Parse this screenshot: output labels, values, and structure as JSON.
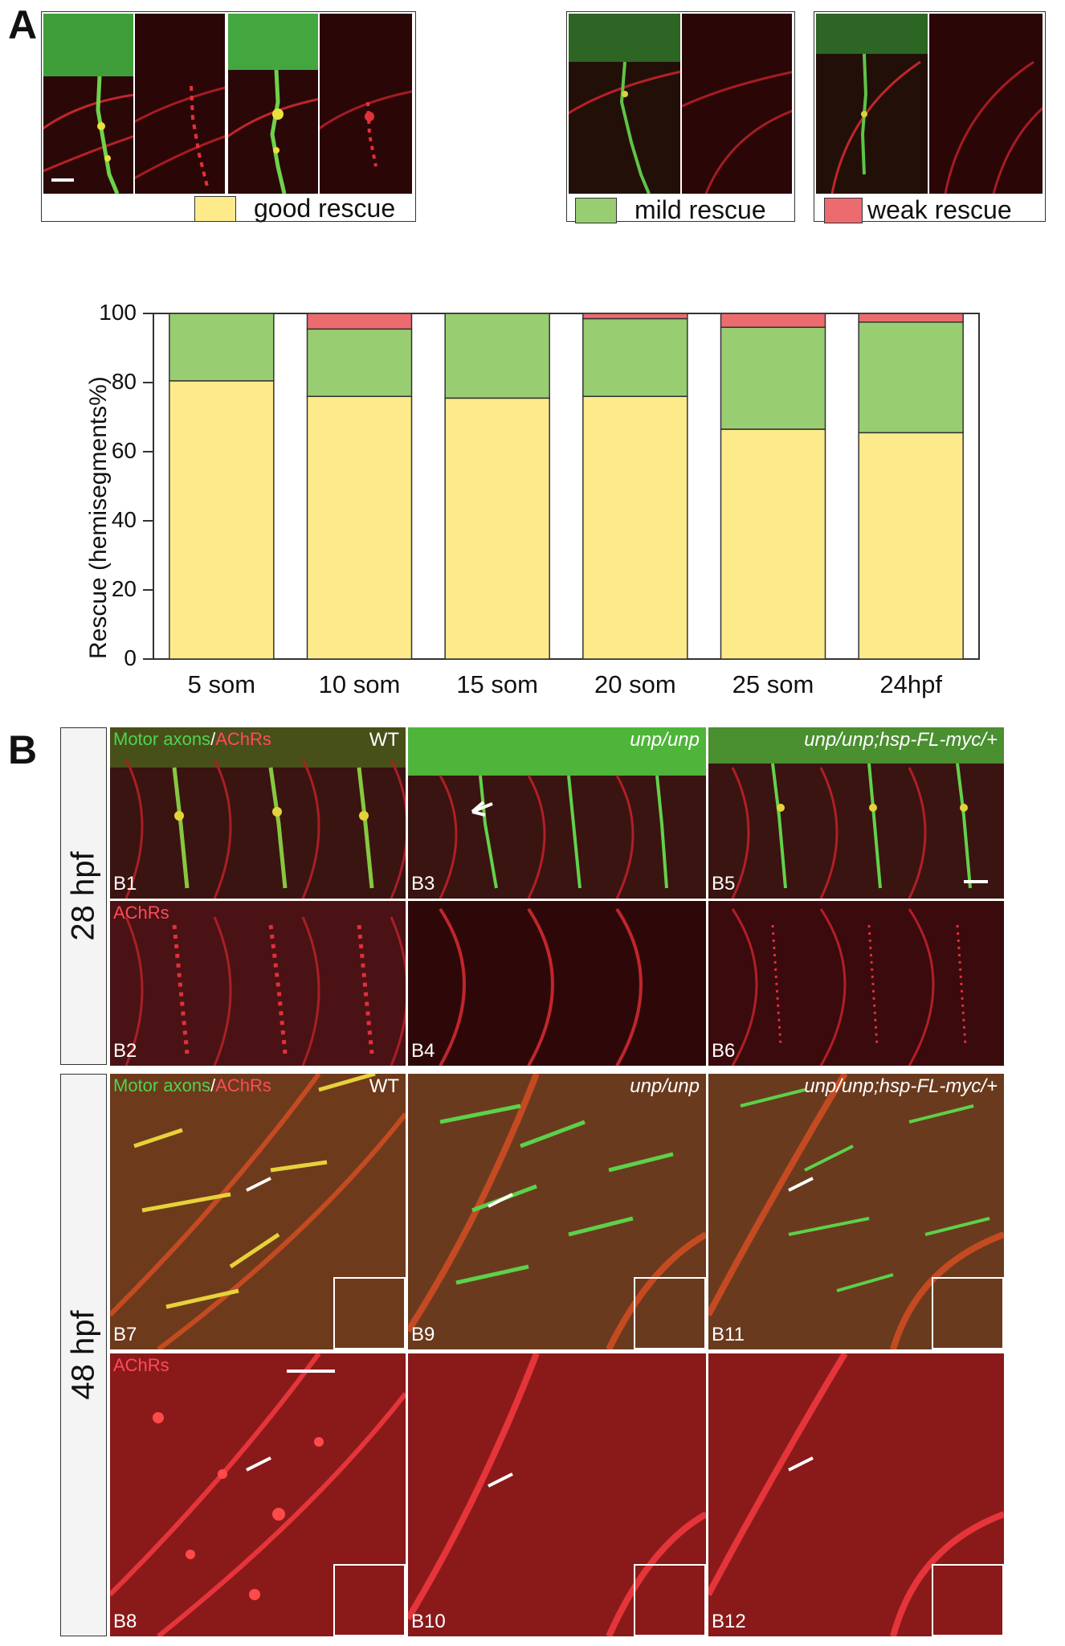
{
  "panels": {
    "a": "A",
    "b": "B"
  },
  "legend": {
    "good": "good rescue",
    "mild": "mild rescue",
    "weak": "weak rescue"
  },
  "colors": {
    "good": "#fdeb8b",
    "mild": "#98cd72",
    "weak": "#ec6b6f"
  },
  "chart_data": {
    "type": "bar",
    "stacked": true,
    "ylabel": "Rescue (hemisegments%)",
    "ylim": [
      0,
      100
    ],
    "yticks": [
      "0",
      "20",
      "40",
      "60",
      "80",
      "100"
    ],
    "categories": [
      "5 som",
      "10 som",
      "15 som",
      "20 som",
      "25 som",
      "24hpf"
    ],
    "series": [
      {
        "name": "good rescue",
        "values": [
          80.5,
          76,
          75.5,
          76,
          66.5,
          65.5
        ]
      },
      {
        "name": "mild rescue",
        "values": [
          19.5,
          19.5,
          24.5,
          22.5,
          29.5,
          32
        ]
      },
      {
        "name": "weak rescue",
        "values": [
          0,
          4.5,
          0,
          1.5,
          4,
          2.5
        ]
      }
    ]
  },
  "figure_b": {
    "times": [
      "28 hpf",
      "48 hpf"
    ],
    "merge_label": {
      "green": "Motor axons",
      "sep": "/",
      "red": "AChRs"
    },
    "achr_label": "AChRs",
    "genotypes": [
      "WT",
      "unp/unp",
      "unp/unp;hsp-FL-myc/+"
    ],
    "panel_ids": [
      "B1",
      "B2",
      "B3",
      "B4",
      "B5",
      "B6",
      "B7",
      "B8",
      "B9",
      "B10",
      "B11",
      "B12"
    ]
  }
}
